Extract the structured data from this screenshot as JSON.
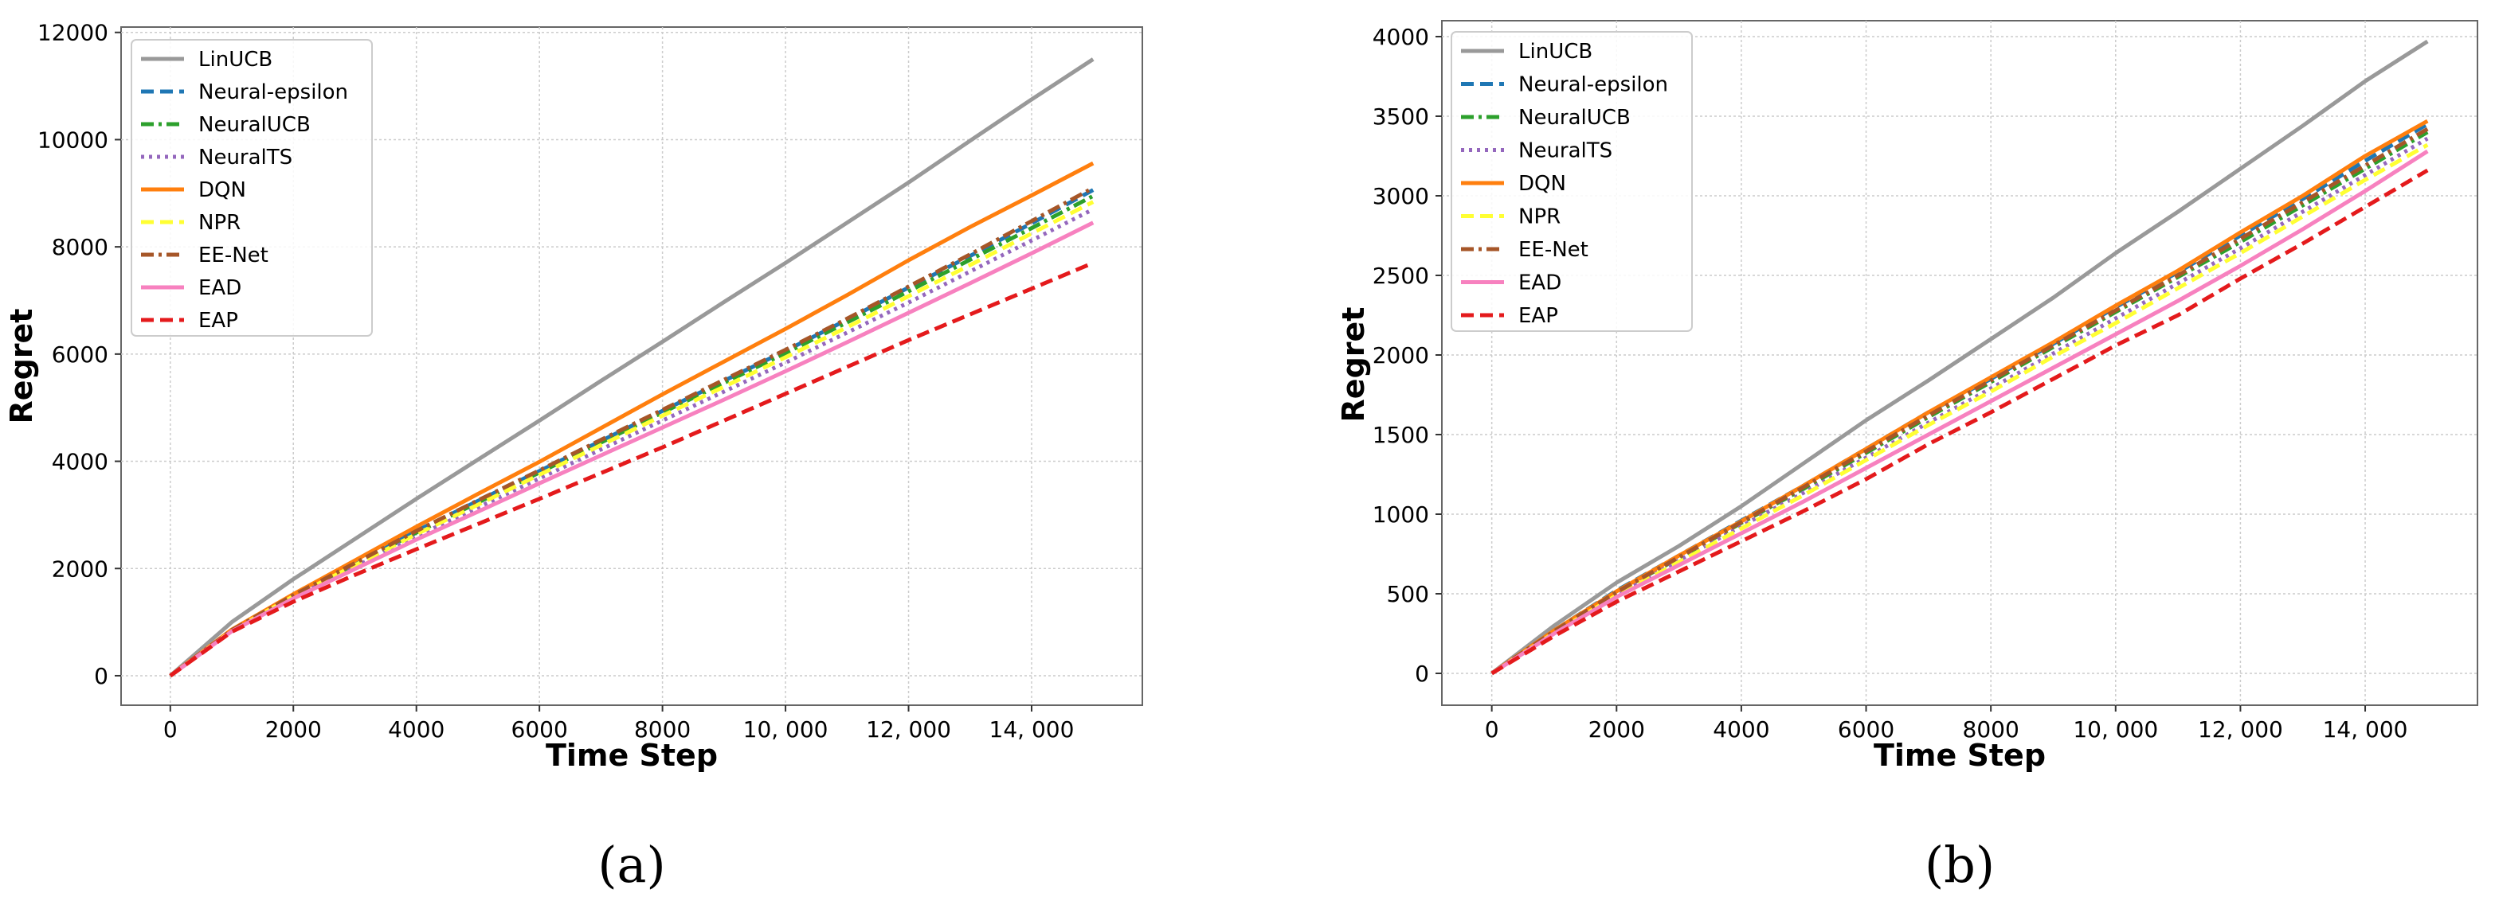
{
  "chart_data": [
    {
      "type": "line",
      "caption": "(a)",
      "xlabel": "Time Step",
      "ylabel": "Regret",
      "xlim": [
        -800,
        15800
      ],
      "ylim": [
        -550,
        12100
      ],
      "xticks": [
        0,
        2000,
        4000,
        6000,
        8000,
        10000,
        12000,
        14000
      ],
      "xtick_labels": [
        "0",
        "2000",
        "4000",
        "6000",
        "8000",
        "10, 000",
        "12, 000",
        "14, 000"
      ],
      "yticks": [
        0,
        2000,
        4000,
        6000,
        8000,
        10000,
        12000
      ],
      "ytick_labels": [
        "0",
        "2000",
        "4000",
        "6000",
        "8000",
        "10000",
        "12000"
      ],
      "grid": true,
      "legend": "top-left",
      "x": [
        0,
        1000,
        2000,
        3000,
        4000,
        5000,
        6000,
        7000,
        8000,
        9000,
        10000,
        11000,
        12000,
        13000,
        14000,
        15000
      ],
      "series": [
        {
          "name": "LinUCB",
          "color": "#999999",
          "dash": "solid",
          "width": 5,
          "values": [
            0,
            1000,
            1800,
            2550,
            3300,
            4030,
            4760,
            5500,
            6230,
            6970,
            7700,
            8450,
            9200,
            9980,
            10750,
            11500
          ]
        },
        {
          "name": "Neural-epsilon",
          "color": "#1f77b4",
          "dash": "dashed",
          "width": 5,
          "values": [
            0,
            850,
            1500,
            2100,
            2700,
            3260,
            3820,
            4380,
            4940,
            5500,
            6060,
            6640,
            7240,
            7830,
            8440,
            9060
          ]
        },
        {
          "name": "NeuralUCB",
          "color": "#2ca02c",
          "dash": "dashdot",
          "width": 5,
          "values": [
            0,
            850,
            1490,
            2080,
            2670,
            3230,
            3790,
            4350,
            4910,
            5460,
            6020,
            6590,
            7170,
            7760,
            8350,
            8950
          ]
        },
        {
          "name": "NeuralTS",
          "color": "#9467bd",
          "dash": "dotted",
          "width": 5,
          "values": [
            0,
            840,
            1460,
            2030,
            2600,
            3140,
            3680,
            4220,
            4760,
            5300,
            5840,
            6400,
            6960,
            7540,
            8120,
            8700
          ]
        },
        {
          "name": "DQN",
          "color": "#ff7f0e",
          "dash": "solid",
          "width": 5,
          "values": [
            0,
            860,
            1520,
            2150,
            2780,
            3390,
            3990,
            4620,
            5250,
            5860,
            6470,
            7100,
            7750,
            8370,
            8960,
            9560
          ]
        },
        {
          "name": "NPR",
          "color": "#ffff33",
          "dash": "dashed",
          "width": 5,
          "values": [
            0,
            840,
            1480,
            2060,
            2640,
            3190,
            3750,
            4300,
            4850,
            5390,
            5940,
            6500,
            7080,
            7660,
            8250,
            8840
          ]
        },
        {
          "name": "EE-Net",
          "color": "#a65628",
          "dash": "dashdot",
          "width": 5,
          "values": [
            0,
            850,
            1500,
            2100,
            2700,
            3270,
            3830,
            4400,
            4960,
            5520,
            6080,
            6660,
            7260,
            7860,
            8480,
            9100
          ]
        },
        {
          "name": "EAD",
          "color": "#f781bf",
          "dash": "solid",
          "width": 5,
          "values": [
            0,
            830,
            1440,
            1990,
            2540,
            3060,
            3590,
            4110,
            4630,
            5150,
            5680,
            6220,
            6770,
            7320,
            7880,
            8450
          ]
        },
        {
          "name": "EAP",
          "color": "#e41a1c",
          "dash": "dashed",
          "width": 5,
          "values": [
            0,
            820,
            1380,
            1880,
            2360,
            2830,
            3300,
            3780,
            4260,
            4760,
            5260,
            5760,
            6260,
            6740,
            7220,
            7700
          ]
        }
      ]
    },
    {
      "type": "line",
      "caption": "(b)",
      "xlabel": "Time Step",
      "ylabel": "Regret",
      "xlim": [
        -800,
        15800
      ],
      "ylim": [
        -200,
        4100
      ],
      "xticks": [
        0,
        2000,
        4000,
        6000,
        8000,
        10000,
        12000,
        14000
      ],
      "xtick_labels": [
        "0",
        "2000",
        "4000",
        "6000",
        "8000",
        "10, 000",
        "12, 000",
        "14, 000"
      ],
      "yticks": [
        0,
        500,
        1000,
        1500,
        2000,
        2500,
        3000,
        3500,
        4000
      ],
      "ytick_labels": [
        "0",
        "500",
        "1000",
        "1500",
        "2000",
        "2500",
        "3000",
        "3500",
        "4000"
      ],
      "grid": true,
      "legend": "top-left",
      "x": [
        0,
        1000,
        2000,
        3000,
        4000,
        5000,
        6000,
        7000,
        8000,
        9000,
        10000,
        11000,
        12000,
        13000,
        14000,
        15000
      ],
      "series": [
        {
          "name": "LinUCB",
          "color": "#999999",
          "dash": "solid",
          "width": 5,
          "values": [
            0,
            300,
            570,
            800,
            1050,
            1320,
            1590,
            1840,
            2100,
            2360,
            2640,
            2900,
            3170,
            3440,
            3720,
            3970
          ]
        },
        {
          "name": "Neural-epsilon",
          "color": "#1f77b4",
          "dash": "dashed",
          "width": 5,
          "values": [
            0,
            270,
            520,
            740,
            960,
            1180,
            1410,
            1640,
            1850,
            2070,
            2300,
            2520,
            2750,
            2980,
            3220,
            3450
          ]
        },
        {
          "name": "NeuralUCB",
          "color": "#2ca02c",
          "dash": "dashdot",
          "width": 5,
          "values": [
            0,
            265,
            510,
            725,
            945,
            1160,
            1385,
            1610,
            1830,
            2050,
            2270,
            2490,
            2710,
            2940,
            3170,
            3400
          ]
        },
        {
          "name": "NeuralTS",
          "color": "#9467bd",
          "dash": "dotted",
          "width": 5,
          "values": [
            0,
            260,
            500,
            710,
            925,
            1135,
            1355,
            1575,
            1790,
            2010,
            2230,
            2450,
            2670,
            2900,
            3130,
            3360
          ]
        },
        {
          "name": "DQN",
          "color": "#ff7f0e",
          "dash": "solid",
          "width": 5,
          "values": [
            0,
            270,
            515,
            740,
            955,
            1180,
            1410,
            1640,
            1860,
            2080,
            2310,
            2530,
            2770,
            3000,
            3250,
            3470
          ]
        },
        {
          "name": "NPR",
          "color": "#ffff33",
          "dash": "dashed",
          "width": 5,
          "values": [
            0,
            255,
            490,
            700,
            910,
            1120,
            1340,
            1560,
            1770,
            1990,
            2200,
            2420,
            2640,
            2870,
            3100,
            3320
          ]
        },
        {
          "name": "EE-Net",
          "color": "#a65628",
          "dash": "dashdot",
          "width": 5,
          "values": [
            0,
            265,
            510,
            730,
            950,
            1170,
            1395,
            1620,
            1840,
            2060,
            2280,
            2500,
            2730,
            2960,
            3190,
            3420
          ]
        },
        {
          "name": "EAD",
          "color": "#f781bf",
          "dash": "solid",
          "width": 5,
          "values": [
            0,
            250,
            480,
            680,
            880,
            1080,
            1290,
            1500,
            1710,
            1920,
            2130,
            2340,
            2560,
            2790,
            3030,
            3280
          ]
        },
        {
          "name": "EAP",
          "color": "#e41a1c",
          "dash": "dashed",
          "width": 5,
          "values": [
            0,
            235,
            450,
            640,
            830,
            1020,
            1220,
            1440,
            1640,
            1850,
            2060,
            2250,
            2480,
            2700,
            2930,
            3160
          ]
        }
      ]
    }
  ]
}
